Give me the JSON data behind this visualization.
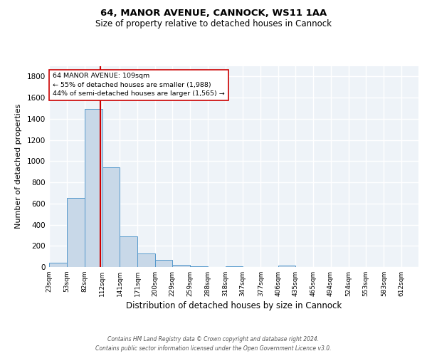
{
  "title1": "64, MANOR AVENUE, CANNOCK, WS11 1AA",
  "title2": "Size of property relative to detached houses in Cannock",
  "xlabel": "Distribution of detached houses by size in Cannock",
  "ylabel": "Number of detached properties",
  "bin_labels": [
    "23sqm",
    "53sqm",
    "82sqm",
    "112sqm",
    "141sqm",
    "171sqm",
    "200sqm",
    "229sqm",
    "259sqm",
    "288sqm",
    "318sqm",
    "347sqm",
    "377sqm",
    "406sqm",
    "435sqm",
    "465sqm",
    "494sqm",
    "524sqm",
    "553sqm",
    "583sqm",
    "612sqm"
  ],
  "bar_values": [
    40,
    650,
    1490,
    940,
    290,
    130,
    65,
    22,
    10,
    2,
    10,
    2,
    2,
    15,
    0,
    0,
    0,
    0,
    0,
    0,
    0
  ],
  "bin_edges": [
    23,
    53,
    82,
    112,
    141,
    171,
    200,
    229,
    259,
    288,
    318,
    347,
    377,
    406,
    435,
    465,
    494,
    524,
    553,
    583,
    612
  ],
  "bar_color": "#c8d8e8",
  "bar_edge_color": "#5599cc",
  "vline_x": 109,
  "vline_color": "#cc0000",
  "annotation_line1": "64 MANOR AVENUE: 109sqm",
  "annotation_line2": "← 55% of detached houses are smaller (1,988)",
  "annotation_line3": "44% of semi-detached houses are larger (1,565) →",
  "annotation_box_color": "#ffffff",
  "annotation_box_edge": "#cc0000",
  "ylim": [
    0,
    1900
  ],
  "yticks": [
    0,
    200,
    400,
    600,
    800,
    1000,
    1200,
    1400,
    1600,
    1800
  ],
  "background_color": "#eef3f8",
  "grid_color": "#ffffff",
  "footer_line1": "Contains HM Land Registry data © Crown copyright and database right 2024.",
  "footer_line2": "Contains public sector information licensed under the Open Government Licence v3.0."
}
